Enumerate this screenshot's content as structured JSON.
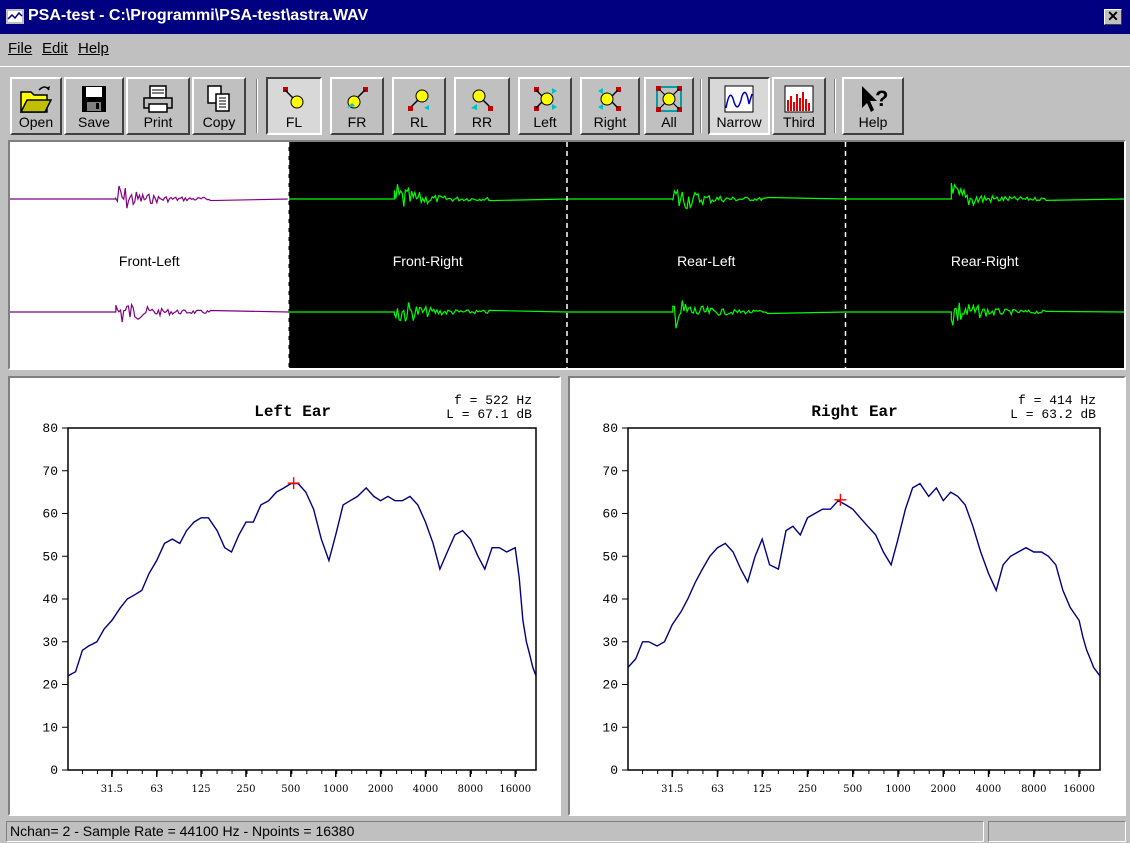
{
  "window": {
    "title": "PSA-test - C:\\Programmi\\PSA-test\\astra.WAV",
    "close_label": "✕"
  },
  "menu": {
    "items": [
      {
        "label": "File"
      },
      {
        "label": "Edit"
      },
      {
        "label": "Help"
      }
    ]
  },
  "toolbar": {
    "open": "Open",
    "save": "Save",
    "print": "Print",
    "copy": "Copy",
    "fl": "FL",
    "fr": "FR",
    "rl": "RL",
    "rr": "RR",
    "left": "Left",
    "right": "Right",
    "all": "All",
    "narrow": "Narrow",
    "third": "Third",
    "help": "Help",
    "pressed": [
      "FL",
      "Narrow"
    ]
  },
  "waveforms": {
    "segments": [
      {
        "label": "Front-Left",
        "color": "#800080",
        "background": "#ffffff"
      },
      {
        "label": "Front-Right",
        "color": "#00ff00",
        "background": "#000000"
      },
      {
        "label": "Rear-Left",
        "color": "#00ff00",
        "background": "#000000"
      },
      {
        "label": "Rear-Right",
        "color": "#00ff00",
        "background": "#000000"
      }
    ]
  },
  "chart_data": [
    {
      "type": "line",
      "title": "Left Ear",
      "readout": {
        "f": "f =   522 Hz",
        "L": "L =  67.1 dB"
      },
      "marker": {
        "x": 522,
        "y": 67.1
      },
      "xscale": "log",
      "xlim": [
        16,
        22050
      ],
      "ylim": [
        0,
        80
      ],
      "yticks": [
        "0",
        "10",
        "20",
        "30",
        "40",
        "50",
        "60",
        "70",
        "80"
      ],
      "xticks": [
        "31.5",
        "63",
        "125",
        "250",
        "500",
        "1000",
        "2000",
        "4000",
        "8000",
        "16000"
      ],
      "series": [
        {
          "color": "#000080",
          "x": [
            16,
            18,
            20,
            22,
            25,
            28,
            31.5,
            36,
            40,
            45,
            50,
            56,
            63,
            71,
            80,
            90,
            100,
            112,
            125,
            140,
            160,
            180,
            200,
            224,
            250,
            280,
            315,
            355,
            400,
            450,
            500,
            560,
            630,
            710,
            800,
            900,
            1000,
            1120,
            1250,
            1400,
            1600,
            1800,
            2000,
            2240,
            2500,
            2800,
            3150,
            3550,
            4000,
            4500,
            5000,
            5600,
            6300,
            7100,
            8000,
            9000,
            10000,
            11200,
            12500,
            14000,
            16000,
            17000,
            18000,
            19000,
            20000,
            21000,
            22050
          ],
          "y": [
            22,
            23,
            28,
            29,
            30,
            33,
            35,
            38,
            40,
            41,
            42,
            46,
            49,
            53,
            54,
            53,
            56,
            58,
            59,
            59,
            56,
            52,
            51,
            55,
            58,
            58,
            62,
            63,
            65,
            66,
            67,
            67,
            65,
            61,
            54,
            49,
            55,
            62,
            63,
            64,
            66,
            64,
            63,
            64,
            63,
            63,
            64,
            62,
            58,
            53,
            47,
            51,
            55,
            56,
            54,
            50,
            47,
            52,
            52,
            51,
            52,
            45,
            35,
            30,
            27,
            24,
            22
          ]
        }
      ]
    },
    {
      "type": "line",
      "title": "Right Ear",
      "readout": {
        "f": "f =   414 Hz",
        "L": "L =  63.2 dB"
      },
      "marker": {
        "x": 414,
        "y": 63.2
      },
      "xscale": "log",
      "xlim": [
        16,
        22050
      ],
      "ylim": [
        0,
        80
      ],
      "yticks": [
        "0",
        "10",
        "20",
        "30",
        "40",
        "50",
        "60",
        "70",
        "80"
      ],
      "xticks": [
        "31.5",
        "63",
        "125",
        "250",
        "500",
        "1000",
        "2000",
        "4000",
        "8000",
        "16000"
      ],
      "series": [
        {
          "color": "#000080",
          "x": [
            16,
            18,
            20,
            22,
            25,
            28,
            31.5,
            36,
            40,
            45,
            50,
            56,
            63,
            71,
            80,
            90,
            100,
            112,
            125,
            140,
            160,
            180,
            200,
            224,
            250,
            280,
            315,
            355,
            400,
            450,
            500,
            560,
            630,
            710,
            800,
            900,
            1000,
            1120,
            1250,
            1400,
            1600,
            1800,
            2000,
            2240,
            2500,
            2800,
            3150,
            3550,
            4000,
            4500,
            5000,
            5600,
            6300,
            7100,
            8000,
            9000,
            10000,
            11200,
            12500,
            14000,
            16000,
            17000,
            18000,
            19000,
            20000,
            21000,
            22050
          ],
          "y": [
            24,
            26,
            30,
            30,
            29,
            30,
            34,
            37,
            40,
            44,
            47,
            50,
            52,
            53,
            51,
            47,
            44,
            50,
            54,
            48,
            47,
            56,
            57,
            55,
            59,
            60,
            61,
            61,
            63,
            62,
            61,
            59,
            57,
            55,
            51,
            48,
            54,
            61,
            66,
            67,
            64,
            66,
            63,
            65,
            64,
            62,
            57,
            51,
            46,
            42,
            48,
            50,
            51,
            52,
            51,
            51,
            50,
            48,
            42,
            38,
            35,
            31,
            28,
            26,
            24,
            23,
            22
          ]
        }
      ]
    }
  ],
  "status": {
    "text": "Nchan= 2 - Sample Rate = 44100 Hz - Npoints = 16380"
  }
}
